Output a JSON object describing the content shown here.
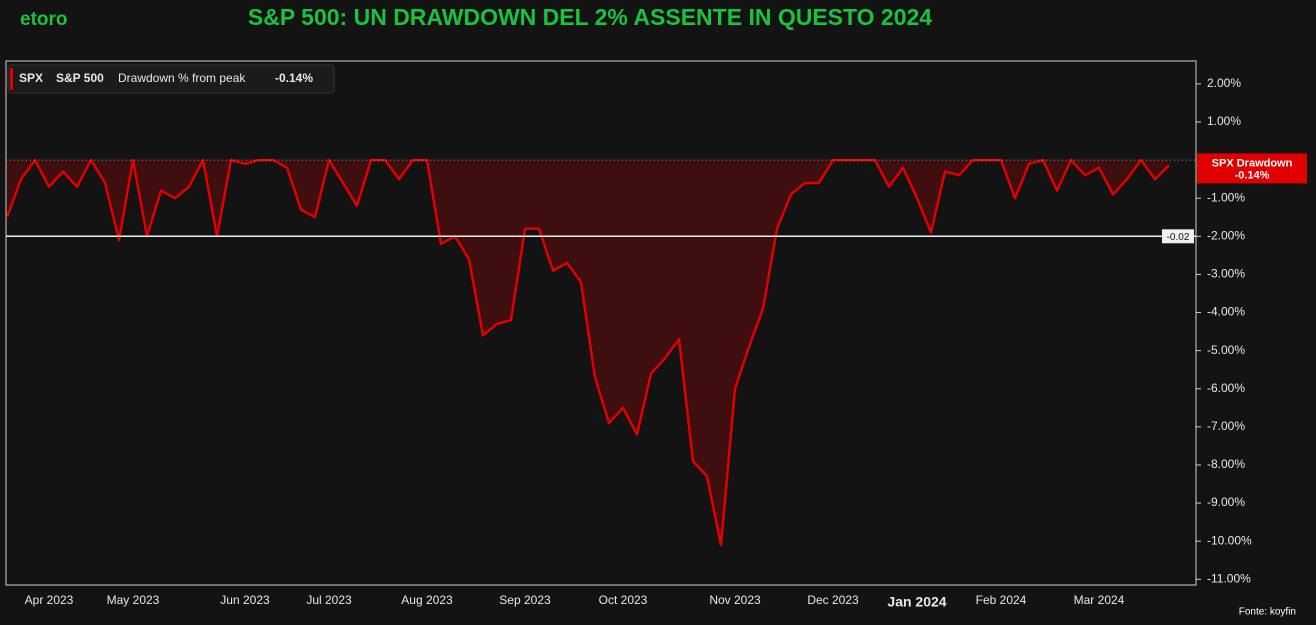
{
  "brand": "etoro",
  "source": "Fonte: koyfin",
  "chart_data": {
    "type": "area",
    "title": "S&P 500: UN DRAWDOWN DEL 2% ASSENTE IN QUESTO 2024",
    "legend": {
      "ticker": "SPX",
      "name": "S&P 500",
      "metric": "Drawdown % from peak",
      "value": "-0.14%"
    },
    "badge": {
      "label": "SPX Drawdown",
      "value": "-0.14%"
    },
    "hline": {
      "value": -2,
      "label": "-0.02"
    },
    "categories": [
      null,
      null,
      null,
      "Apr 2023",
      null,
      null,
      null,
      null,
      null,
      "May 2023",
      null,
      null,
      null,
      null,
      null,
      null,
      null,
      "Jun 2023",
      null,
      null,
      null,
      null,
      null,
      "Jul 2023",
      null,
      null,
      null,
      null,
      null,
      null,
      "Aug 2023",
      null,
      null,
      null,
      null,
      null,
      null,
      "Sep 2023",
      null,
      null,
      null,
      null,
      null,
      null,
      "Oct 2023",
      null,
      null,
      null,
      null,
      null,
      null,
      null,
      "Nov 2023",
      null,
      null,
      null,
      null,
      null,
      null,
      "Dec 2023",
      null,
      null,
      null,
      null,
      null,
      "Jan 2024",
      null,
      null,
      null,
      null,
      null,
      "Feb 2024",
      null,
      null,
      null,
      null,
      null,
      null,
      "Mar 2024",
      null,
      null,
      null,
      null,
      null
    ],
    "series": [
      {
        "name": "SPX Drawdown",
        "color": "#e00000",
        "values": [
          -1.5,
          -0.5,
          0,
          -0.7,
          -0.3,
          -0.7,
          0,
          -0.6,
          -2.1,
          0,
          -2.0,
          -0.8,
          -1.0,
          -0.7,
          0,
          -2.0,
          0,
          -0.1,
          0,
          0,
          -0.2,
          -1.3,
          -1.5,
          0,
          -0.6,
          -1.2,
          0,
          0,
          -0.5,
          0,
          0,
          -2.2,
          -2.0,
          -2.6,
          -4.6,
          -4.3,
          -4.2,
          -1.8,
          -1.8,
          -2.9,
          -2.7,
          -3.2,
          -5.7,
          -6.9,
          -6.5,
          -7.2,
          -5.6,
          -5.2,
          -4.7,
          -7.9,
          -8.3,
          -10.1,
          -6.0,
          -4.9,
          -3.9,
          -1.8,
          -0.9,
          -0.6,
          -0.6,
          0,
          0,
          0,
          0,
          -0.7,
          -0.2,
          -1.0,
          -1.9,
          -0.3,
          -0.4,
          0,
          0,
          0,
          -1.0,
          -0.1,
          0,
          -0.8,
          0,
          -0.4,
          -0.2,
          -0.9,
          -0.5,
          0,
          -0.5,
          -0.14
        ]
      }
    ],
    "ylim": [
      -11.15,
      2.6
    ],
    "yticks": [
      {
        "value": 2,
        "label": "2.00%"
      },
      {
        "value": 1,
        "label": "1.00%"
      },
      {
        "value": -1,
        "label": "-1.00%"
      },
      {
        "value": -2,
        "label": "-2.00%"
      },
      {
        "value": -3,
        "label": "-3.00%"
      },
      {
        "value": -4,
        "label": "-4.00%"
      },
      {
        "value": -5,
        "label": "-5.00%"
      },
      {
        "value": -6,
        "label": "-6.00%"
      },
      {
        "value": -7,
        "label": "-7.00%"
      },
      {
        "value": -8,
        "label": "-8.00%"
      },
      {
        "value": -9,
        "label": "-9.00%"
      },
      {
        "value": -10,
        "label": "-10.00%"
      },
      {
        "value": -11,
        "label": "-11.00%"
      }
    ]
  }
}
